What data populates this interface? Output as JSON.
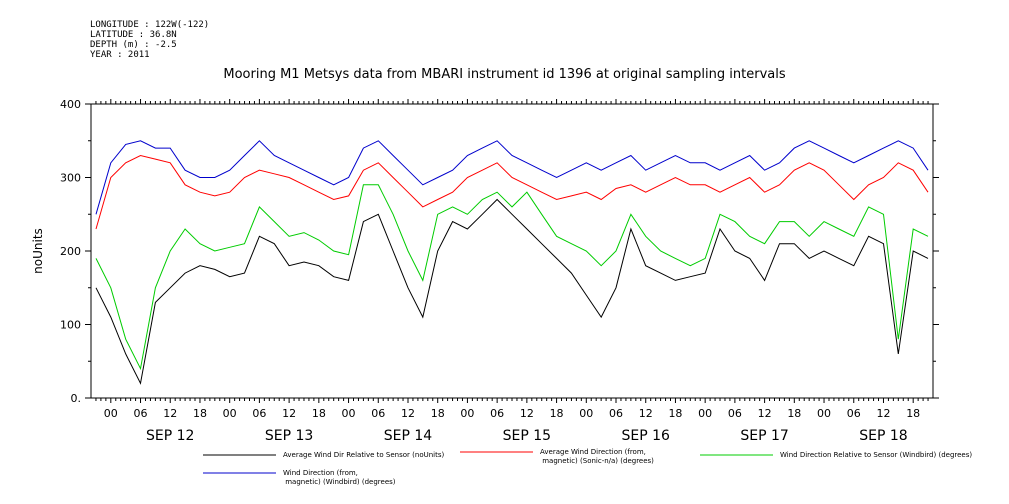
{
  "meta": {
    "longitude": "LONGITUDE : 122W(-122)",
    "latitude": "LATITUDE : 36.8N",
    "depth": "DEPTH (m) : -2.5",
    "year": "YEAR : 2011"
  },
  "chart_data": {
    "type": "line",
    "title": "Mooring M1 Metsys data from MBARI instrument id 1396 at original sampling intervals",
    "ylabel": "noUnits",
    "xlabel": "",
    "ylim": [
      0,
      400
    ],
    "yticks": [
      "0.",
      "100",
      "200",
      "300",
      "400"
    ],
    "hour_ticks": [
      "00",
      "06",
      "12",
      "18",
      "00",
      "06",
      "12",
      "18",
      "00",
      "06",
      "12",
      "18",
      "00",
      "06",
      "12",
      "18",
      "00",
      "06",
      "12",
      "18",
      "00",
      "06",
      "12",
      "18",
      "00",
      "06",
      "12",
      "18"
    ],
    "day_labels": [
      "SEP 12",
      "SEP 13",
      "SEP 14",
      "SEP 15",
      "SEP 16",
      "SEP 17",
      "SEP 18"
    ],
    "x_range_hours": [
      -4,
      166
    ],
    "grid": false,
    "legend_position": "bottom",
    "series": [
      {
        "name": "Average Wind Dir Relative to Sensor (noUnits)",
        "color": "#000000",
        "x": [
          -3,
          0,
          3,
          6,
          9,
          12,
          15,
          18,
          21,
          24,
          27,
          30,
          33,
          36,
          39,
          42,
          45,
          48,
          51,
          54,
          57,
          60,
          63,
          66,
          69,
          72,
          75,
          78,
          81,
          84,
          87,
          90,
          93,
          96,
          99,
          102,
          105,
          108,
          111,
          114,
          117,
          120,
          123,
          126,
          129,
          132,
          135,
          138,
          141,
          144,
          147,
          150,
          153,
          156,
          159,
          162,
          165
        ],
        "values": [
          150,
          110,
          60,
          20,
          130,
          150,
          170,
          180,
          175,
          165,
          170,
          220,
          210,
          180,
          185,
          180,
          165,
          160,
          240,
          250,
          200,
          150,
          110,
          200,
          240,
          230,
          250,
          270,
          250,
          230,
          210,
          190,
          170,
          140,
          110,
          150,
          230,
          180,
          170,
          160,
          165,
          170,
          230,
          200,
          190,
          160,
          210,
          210,
          190,
          200,
          190,
          180,
          220,
          210,
          60,
          200,
          190
        ]
      },
      {
        "name": "Average Wind Direction (from, magnetic) (Sonic-n/a) (degrees)",
        "color": "#ff0000",
        "x": [
          -3,
          0,
          3,
          6,
          9,
          12,
          15,
          18,
          21,
          24,
          27,
          30,
          33,
          36,
          39,
          42,
          45,
          48,
          51,
          54,
          57,
          60,
          63,
          66,
          69,
          72,
          75,
          78,
          81,
          84,
          87,
          90,
          93,
          96,
          99,
          102,
          105,
          108,
          111,
          114,
          117,
          120,
          123,
          126,
          129,
          132,
          135,
          138,
          141,
          144,
          147,
          150,
          153,
          156,
          159,
          162,
          165
        ],
        "values": [
          230,
          300,
          320,
          330,
          325,
          320,
          290,
          280,
          275,
          280,
          300,
          310,
          305,
          300,
          290,
          280,
          270,
          275,
          310,
          320,
          300,
          280,
          260,
          270,
          280,
          300,
          310,
          320,
          300,
          290,
          280,
          270,
          275,
          280,
          270,
          285,
          290,
          280,
          290,
          300,
          290,
          290,
          280,
          290,
          300,
          280,
          290,
          310,
          320,
          310,
          290,
          270,
          290,
          300,
          320,
          310,
          280
        ]
      },
      {
        "name": "Wind Direction Relative to Sensor (Windbird) (degrees)",
        "color": "#00cc00",
        "x": [
          -3,
          0,
          3,
          6,
          9,
          12,
          15,
          18,
          21,
          24,
          27,
          30,
          33,
          36,
          39,
          42,
          45,
          48,
          51,
          54,
          57,
          60,
          63,
          66,
          69,
          72,
          75,
          78,
          81,
          84,
          87,
          90,
          93,
          96,
          99,
          102,
          105,
          108,
          111,
          114,
          117,
          120,
          123,
          126,
          129,
          132,
          135,
          138,
          141,
          144,
          147,
          150,
          153,
          156,
          159,
          162,
          165
        ],
        "values": [
          190,
          150,
          80,
          40,
          150,
          200,
          230,
          210,
          200,
          205,
          210,
          260,
          240,
          220,
          225,
          215,
          200,
          195,
          290,
          290,
          250,
          200,
          160,
          250,
          260,
          250,
          270,
          280,
          260,
          280,
          250,
          220,
          210,
          200,
          180,
          200,
          250,
          220,
          200,
          190,
          180,
          190,
          250,
          240,
          220,
          210,
          240,
          240,
          220,
          240,
          230,
          220,
          260,
          250,
          80,
          230,
          220
        ]
      },
      {
        "name": "Wind Direction (from, magnetic) (Windbird) (degrees)",
        "color": "#0000cc",
        "x": [
          -3,
          0,
          3,
          6,
          9,
          12,
          15,
          18,
          21,
          24,
          27,
          30,
          33,
          36,
          39,
          42,
          45,
          48,
          51,
          54,
          57,
          60,
          63,
          66,
          69,
          72,
          75,
          78,
          81,
          84,
          87,
          90,
          93,
          96,
          99,
          102,
          105,
          108,
          111,
          114,
          117,
          120,
          123,
          126,
          129,
          132,
          135,
          138,
          141,
          144,
          147,
          150,
          153,
          156,
          159,
          162,
          165
        ],
        "values": [
          250,
          320,
          345,
          350,
          340,
          340,
          310,
          300,
          300,
          310,
          330,
          350,
          330,
          320,
          310,
          300,
          290,
          300,
          340,
          350,
          330,
          310,
          290,
          300,
          310,
          330,
          340,
          350,
          330,
          320,
          310,
          300,
          310,
          320,
          310,
          320,
          330,
          310,
          320,
          330,
          320,
          320,
          310,
          320,
          330,
          310,
          320,
          340,
          350,
          340,
          330,
          320,
          330,
          340,
          350,
          340,
          310
        ]
      }
    ],
    "legend": [
      {
        "label": "Average Wind Dir Relative to Sensor (noUnits)",
        "color": "#000000"
      },
      {
        "label": "Average Wind Direction (from,\n magnetic) (Sonic-n/a) (degrees)",
        "color": "#ff0000"
      },
      {
        "label": "Wind Direction Relative to Sensor (Windbird) (degrees)",
        "color": "#00cc00"
      },
      {
        "label": "Wind Direction (from,\n magnetic) (Windbird) (degrees)",
        "color": "#0000cc"
      }
    ]
  }
}
